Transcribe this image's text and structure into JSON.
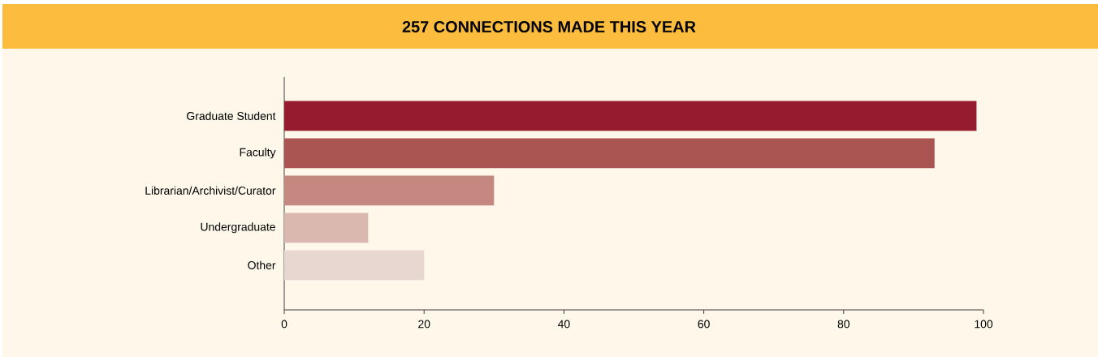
{
  "chart_data": {
    "type": "bar",
    "orientation": "horizontal",
    "title": "257 CONNECTIONS MADE THIS YEAR",
    "categories": [
      "Graduate Student",
      "Faculty",
      "Librarian/Archivist/Curator",
      "Undergraduate",
      "Other"
    ],
    "values": [
      99,
      93,
      30,
      12,
      20
    ],
    "colors": [
      "#971b2f",
      "#ab5553",
      "#c58880",
      "#dab8b0",
      "#e8d6d1"
    ],
    "xlim": [
      0,
      100
    ],
    "xticks": [
      0,
      20,
      40,
      60,
      80,
      100
    ]
  }
}
